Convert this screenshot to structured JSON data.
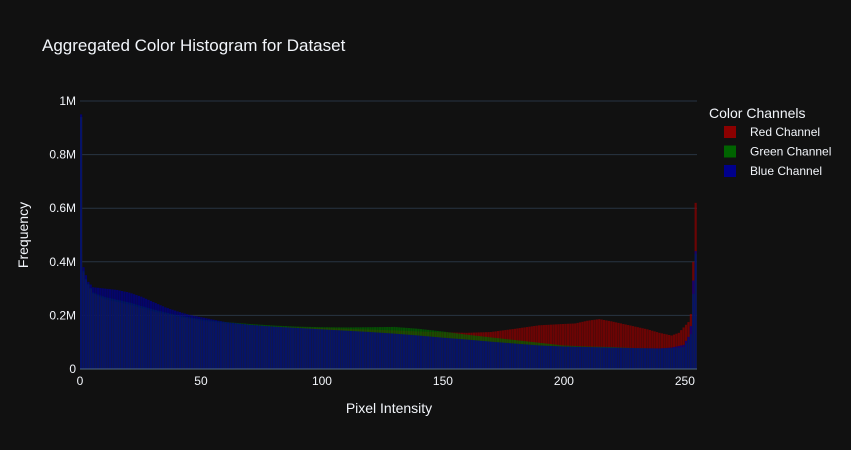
{
  "chart_data": {
    "type": "bar",
    "barmode": "overlay",
    "title": "Aggregated Color Histogram for Dataset",
    "xlabel": "Pixel Intensity",
    "ylabel": "Frequency",
    "xlim": [
      0,
      255
    ],
    "ylim": [
      0,
      1000000
    ],
    "xticks": [
      0,
      50,
      100,
      150,
      200,
      250
    ],
    "xtick_labels": [
      "0",
      "50",
      "100",
      "150",
      "200",
      "250"
    ],
    "yticks": [
      0,
      200000,
      400000,
      600000,
      800000,
      1000000
    ],
    "ytick_labels": [
      "0",
      "0.2M",
      "0.4M",
      "0.6M",
      "0.8M",
      "1M"
    ],
    "grid": true,
    "legend": {
      "title": "Color Channels",
      "placement": "right"
    },
    "background": "#111111",
    "text_color": "#f2f5fa",
    "grid_color": "#283442",
    "series": [
      {
        "name": "Red Channel",
        "color": "#8b0000",
        "keypoints": [
          [
            0,
            940000
          ],
          [
            1,
            360000
          ],
          [
            2,
            330000
          ],
          [
            5,
            280000
          ],
          [
            10,
            260000
          ],
          [
            15,
            250000
          ],
          [
            20,
            240000
          ],
          [
            30,
            215000
          ],
          [
            40,
            195000
          ],
          [
            50,
            180000
          ],
          [
            60,
            170000
          ],
          [
            70,
            163000
          ],
          [
            80,
            158000
          ],
          [
            90,
            155000
          ],
          [
            100,
            153000
          ],
          [
            110,
            150000
          ],
          [
            120,
            147000
          ],
          [
            130,
            144000
          ],
          [
            140,
            140000
          ],
          [
            150,
            137000
          ],
          [
            160,
            135000
          ],
          [
            170,
            138000
          ],
          [
            180,
            150000
          ],
          [
            190,
            163000
          ],
          [
            200,
            168000
          ],
          [
            205,
            170000
          ],
          [
            210,
            180000
          ],
          [
            215,
            186000
          ],
          [
            220,
            178000
          ],
          [
            225,
            168000
          ],
          [
            230,
            158000
          ],
          [
            235,
            148000
          ],
          [
            240,
            135000
          ],
          [
            245,
            125000
          ],
          [
            248,
            135000
          ],
          [
            250,
            155000
          ],
          [
            252,
            175000
          ],
          [
            253,
            205000
          ],
          [
            254,
            400000
          ],
          [
            255,
            620000
          ]
        ]
      },
      {
        "name": "Green Channel",
        "color": "#006400",
        "keypoints": [
          [
            0,
            940000
          ],
          [
            1,
            365000
          ],
          [
            2,
            335000
          ],
          [
            5,
            285000
          ],
          [
            10,
            268000
          ],
          [
            15,
            258000
          ],
          [
            20,
            248000
          ],
          [
            30,
            222000
          ],
          [
            40,
            200000
          ],
          [
            50,
            185000
          ],
          [
            60,
            175000
          ],
          [
            70,
            168000
          ],
          [
            80,
            162000
          ],
          [
            90,
            158000
          ],
          [
            100,
            156000
          ],
          [
            110,
            155000
          ],
          [
            120,
            156000
          ],
          [
            130,
            157000
          ],
          [
            140,
            150000
          ],
          [
            150,
            140000
          ],
          [
            160,
            128000
          ],
          [
            170,
            118000
          ],
          [
            180,
            108000
          ],
          [
            190,
            98000
          ],
          [
            200,
            88000
          ],
          [
            210,
            84000
          ],
          [
            220,
            82000
          ],
          [
            225,
            80000
          ],
          [
            230,
            78000
          ],
          [
            240,
            76000
          ],
          [
            245,
            78000
          ],
          [
            250,
            82000
          ],
          [
            252,
            110000
          ],
          [
            253,
            130000
          ],
          [
            254,
            280000
          ],
          [
            255,
            430000
          ]
        ]
      },
      {
        "name": "Blue Channel",
        "color": "#00008b",
        "keypoints": [
          [
            0,
            950000
          ],
          [
            1,
            380000
          ],
          [
            2,
            350000
          ],
          [
            3,
            325000
          ],
          [
            5,
            305000
          ],
          [
            10,
            300000
          ],
          [
            15,
            295000
          ],
          [
            20,
            285000
          ],
          [
            25,
            270000
          ],
          [
            30,
            250000
          ],
          [
            35,
            230000
          ],
          [
            40,
            215000
          ],
          [
            45,
            202000
          ],
          [
            50,
            193000
          ],
          [
            60,
            175000
          ],
          [
            70,
            165000
          ],
          [
            80,
            158000
          ],
          [
            90,
            153000
          ],
          [
            100,
            148000
          ],
          [
            110,
            143000
          ],
          [
            120,
            138000
          ],
          [
            130,
            132000
          ],
          [
            140,
            125000
          ],
          [
            150,
            117000
          ],
          [
            160,
            110000
          ],
          [
            170,
            102000
          ],
          [
            180,
            95000
          ],
          [
            190,
            88000
          ],
          [
            200,
            84000
          ],
          [
            210,
            82000
          ],
          [
            220,
            80000
          ],
          [
            230,
            78000
          ],
          [
            240,
            77000
          ],
          [
            245,
            80000
          ],
          [
            250,
            90000
          ],
          [
            252,
            120000
          ],
          [
            253,
            160000
          ],
          [
            254,
            330000
          ],
          [
            255,
            440000
          ]
        ]
      }
    ]
  }
}
